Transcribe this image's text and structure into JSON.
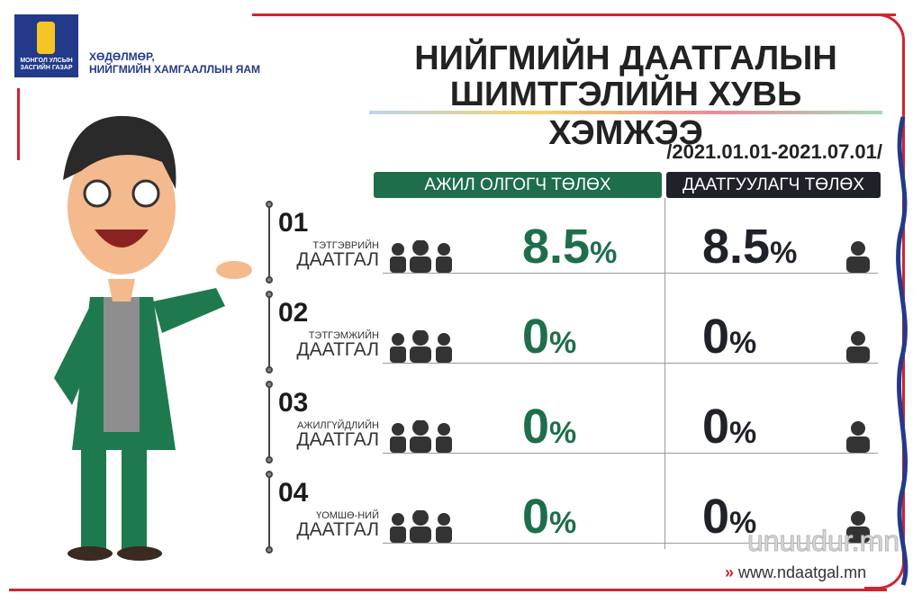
{
  "logo": {
    "text": "МОНГОЛ УЛСЫН ЗАСГИЙН ГАЗАР"
  },
  "ministry": {
    "line1": "ХӨДӨЛМӨР,",
    "line2": "НИЙГМИЙН ХАМГААЛЛЫН ЯАМ"
  },
  "title": {
    "line1": "НИЙГМИЙН ДААТГАЛЫН",
    "line2": "ШИМТГЭЛИЙН ХУВЬ ХЭМЖЭЭ"
  },
  "period": "/2021.01.01-2021.07.01/",
  "columns": {
    "employer": "АЖИЛ ОЛГОГЧ ТӨЛӨХ",
    "insured": "ДААТГУУЛАГЧ ТӨЛӨХ"
  },
  "rows": [
    {
      "num": "01",
      "sub": "ТЭТГЭВРИЙН",
      "main": "ДААТГАЛ",
      "employer": "8.5",
      "insured": "8.5",
      "unit": "%"
    },
    {
      "num": "02",
      "sub": "ТЭТГЭМЖИЙН",
      "main": "ДААТГАЛ",
      "employer": "0",
      "insured": "0",
      "unit": "%"
    },
    {
      "num": "03",
      "sub": "АЖИЛГҮЙДЛИЙН",
      "main": "ДААТГАЛ",
      "employer": "0",
      "insured": "0",
      "unit": "%"
    },
    {
      "num": "04",
      "sub": "ҮОМШӨ-НИЙ",
      "main": "ДААТГАЛ",
      "employer": "0",
      "insured": "0",
      "unit": "%"
    }
  ],
  "website": "www.ndaatgal.mn",
  "watermark": "unuudur.mn",
  "colors": {
    "green": "#1e6e4c",
    "dark": "#1f2228",
    "red": "#d3232f",
    "navy": "#233a8b"
  }
}
